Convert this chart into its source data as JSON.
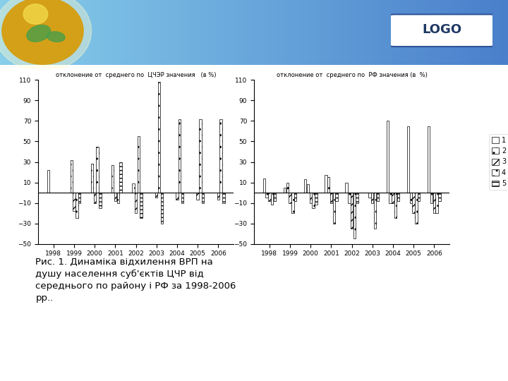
{
  "years": [
    1998,
    1999,
    2000,
    2001,
    2002,
    2003,
    2004,
    2005,
    2006
  ],
  "chart1_title": "отклонение от  среднего по  ЦЧЭР значения   (в %)",
  "chart2_title": "отклонение от  среднего по  РФ значения (в  %)",
  "chart1_series": [
    [
      22,
      0,
      0,
      0,
      0,
      0,
      0,
      0,
      0
    ],
    [
      0,
      32,
      28,
      27,
      9,
      0,
      0,
      0,
      0
    ],
    [
      0,
      -18,
      -10,
      -8,
      -20,
      -5,
      -7,
      -7,
      -7
    ],
    [
      0,
      -25,
      45,
      -10,
      55,
      108,
      72,
      72,
      72
    ],
    [
      0,
      -10,
      -15,
      30,
      -25,
      -30,
      -10,
      -10,
      -10
    ]
  ],
  "chart2_series": [
    [
      14,
      5,
      13,
      17,
      10,
      0,
      70,
      65,
      65
    ],
    [
      -5,
      10,
      8,
      15,
      -10,
      -5,
      -10,
      -10,
      -10
    ],
    [
      -8,
      -10,
      -10,
      -10,
      -35,
      -10,
      -10,
      -20,
      -20
    ],
    [
      -12,
      -20,
      -15,
      -30,
      -45,
      -35,
      -25,
      -30,
      -20
    ],
    [
      -8,
      -8,
      -12,
      -8,
      -10,
      -8,
      -8,
      -8,
      -8
    ]
  ],
  "legend_labels": [
    "1",
    "2",
    "3",
    "4",
    "5"
  ],
  "hatches": [
    "",
    "..",
    "///",
    "..",
    "---"
  ],
  "ylim": [
    -50,
    110
  ],
  "yticks": [
    -50,
    -30,
    -10,
    10,
    30,
    50,
    70,
    90,
    110
  ],
  "header_top_color": "#a8c8e8",
  "header_bottom_color": "#5b9bd5",
  "slide_bg": "#ffffff",
  "caption": "Рис. 1. Динаміка відхилення ВРП на\nдушу населення суб'єктів ЦЧР від\nсереднього по району і РФ за 1998-2006\nрр..",
  "logo_text": "LOGO",
  "bar_width": 0.13,
  "chart1_title_fontsize": 6.0,
  "chart2_title_fontsize": 6.0,
  "tick_fontsize": 6.5,
  "caption_fontsize": 9.5
}
